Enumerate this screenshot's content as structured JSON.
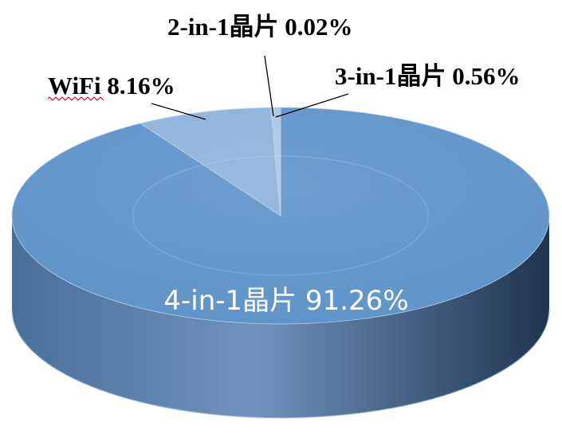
{
  "chart_data": {
    "type": "pie",
    "style": "3d",
    "title": "",
    "start_angle": "12 o'clock",
    "direction": "clockwise",
    "slices": [
      {
        "name": "4-in-1晶片",
        "value": 91.26,
        "label": "4-in-1晶片 91.26%",
        "color": "#5f93c9",
        "label_position": "inside"
      },
      {
        "name": "WiFi",
        "value": 8.16,
        "label": "WiFi 8.16%",
        "color": "#8db2da",
        "label_position": "outside"
      },
      {
        "name": "2-in-1晶片",
        "value": 0.02,
        "label": "2-in-1晶片 0.02%",
        "color": "#a9c5e4",
        "label_position": "outside"
      },
      {
        "name": "3-in-1晶片",
        "value": 0.56,
        "label": "3-in-1晶片 0.56%",
        "color": "#a9c5e4",
        "label_position": "outside"
      }
    ],
    "colors": {
      "side_dark": "#1e3550",
      "side_mid": "#4a6f99",
      "side_light": "#6f93bd",
      "label_inside": "#ffffff",
      "label_outside": "#000000",
      "spellcheck_underline": "#d10000"
    }
  }
}
